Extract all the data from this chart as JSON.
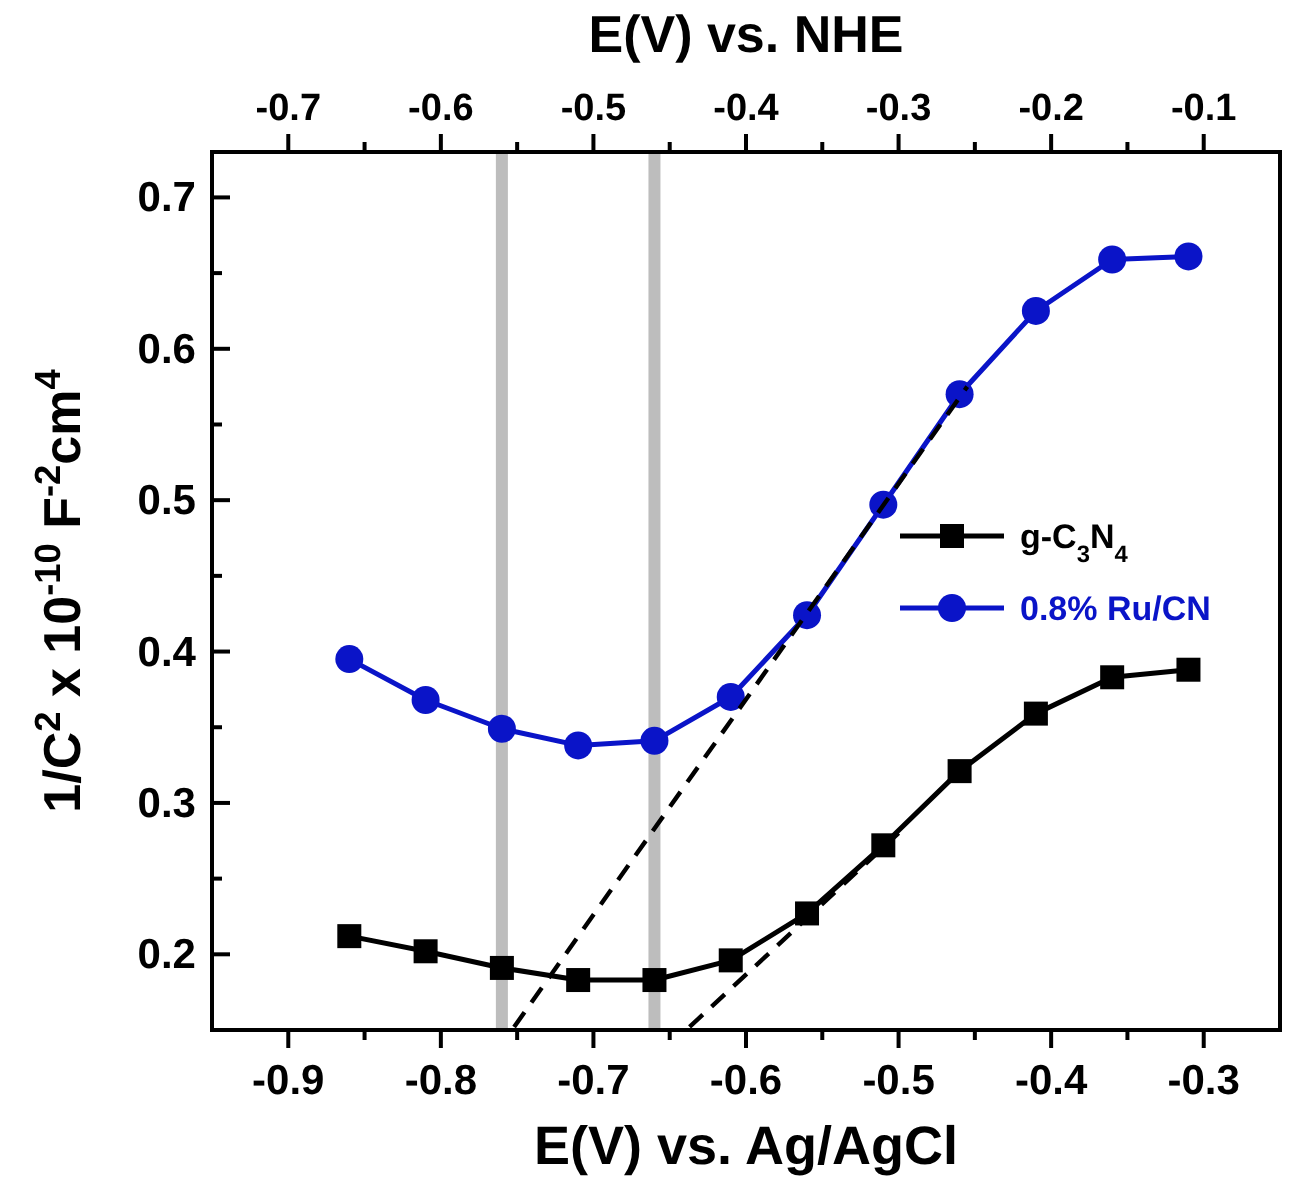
{
  "chart_data": {
    "type": "line",
    "xlabel": "E(V) vs. Ag/AgCl",
    "x2label": "E(V) vs. NHE",
    "ylabel": "1/C$^{2}$ x 10$^{-10}$ F$^{-2}$cm$^{4}$",
    "x": [
      -0.86,
      -0.81,
      -0.76,
      -0.71,
      -0.66,
      -0.61,
      -0.56,
      -0.51,
      -0.46,
      -0.41,
      -0.36,
      -0.31
    ],
    "series": [
      {
        "name": "g-C$_{3}$N$_{4}$",
        "color": "#000000",
        "marker": "square",
        "values": [
          0.212,
          0.202,
          0.191,
          0.183,
          0.183,
          0.196,
          0.227,
          0.272,
          0.321,
          0.359,
          0.383,
          0.388
        ]
      },
      {
        "name": "0.8% Ru/CN",
        "color": "#0a14c8",
        "marker": "circle",
        "values": [
          0.395,
          0.368,
          0.349,
          0.338,
          0.341,
          0.37,
          0.424,
          0.497,
          0.57,
          0.625,
          0.659,
          0.661
        ]
      },
      {
        "type": "line",
        "color": "#000000",
        "marker": "none",
        "line_style": "dashed",
        "x": [
          -0.752,
          -0.455
        ],
        "values": [
          0.152,
          0.575
        ]
      },
      {
        "type": "line",
        "color": "#000000",
        "marker": "none",
        "line_style": "dashed",
        "x": [
          -0.637,
          -0.5
        ],
        "values": [
          0.152,
          0.28
        ]
      }
    ],
    "xlim": [
      -0.95,
      -0.25
    ],
    "xticks": [
      -0.9,
      {
        "value": -0.85,
        "label": null
      },
      -0.8,
      {
        "value": -0.75,
        "label": null
      },
      -0.7,
      {
        "value": -0.65,
        "label": null
      },
      -0.6,
      {
        "value": -0.55,
        "label": null
      },
      -0.5,
      {
        "value": -0.45,
        "label": null
      },
      -0.4,
      {
        "value": -0.35,
        "label": null
      },
      -0.3
    ],
    "x2lim": [
      -0.75,
      -0.05
    ],
    "x2ticks": [
      -0.7,
      {
        "value": -0.65,
        "label": null
      },
      -0.6,
      {
        "value": -0.55,
        "label": null
      },
      -0.5,
      {
        "value": -0.45,
        "label": null
      },
      -0.4,
      {
        "value": -0.35,
        "label": null
      },
      -0.3,
      {
        "value": -0.25,
        "label": null
      },
      -0.2,
      {
        "value": -0.15,
        "label": null
      },
      -0.1
    ],
    "ylim": [
      0.15,
      0.73
    ],
    "yticks": [
      0.2,
      {
        "value": 0.25,
        "label": null
      },
      0.3,
      {
        "value": 0.35,
        "label": null
      },
      0.4,
      {
        "value": 0.45,
        "label": null
      },
      0.5,
      {
        "value": 0.55,
        "label": null
      },
      0.6,
      {
        "value": 0.65,
        "label": null
      },
      0.7
    ],
    "ref_lines": [
      {
        "axis": "x",
        "value": -0.76,
        "color": "#bdbdbd"
      },
      {
        "axis": "x",
        "value": -0.66,
        "color": "#bdbdbd"
      }
    ],
    "legend": "right",
    "grid": false
  }
}
